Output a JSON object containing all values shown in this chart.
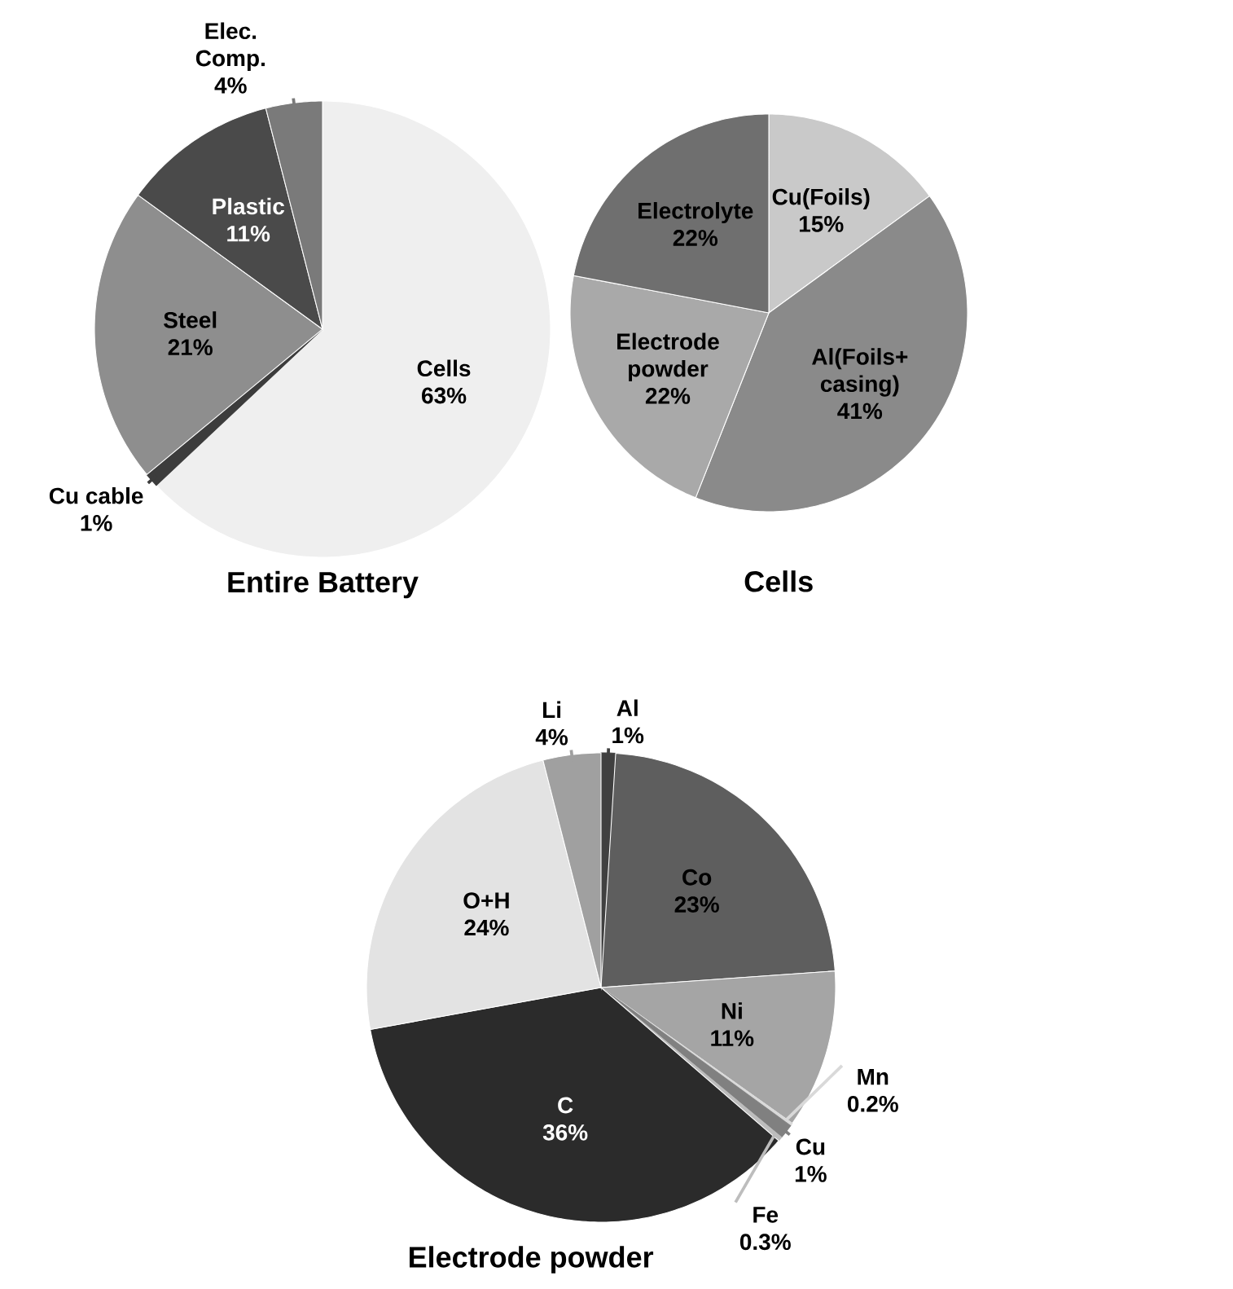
{
  "chart_data": [
    {
      "type": "pie",
      "title": "Entire Battery",
      "categories": [
        "Cells",
        "Cu cable",
        "Steel",
        "Plastic",
        "Elec. Comp."
      ],
      "values": [
        63,
        1,
        21,
        11,
        4
      ],
      "value_labels": [
        "63%",
        "1%",
        "21%",
        "11%",
        "4%"
      ],
      "colors": [
        "#efefef",
        "#3c3c3c",
        "#8e8e8e",
        "#4a4a4a",
        "#7a7a7a"
      ]
    },
    {
      "type": "pie",
      "title": "Cells",
      "categories": [
        "Cu(Foils)",
        "Al(Foils+ casing)",
        "Electrode powder",
        "Electrolyte"
      ],
      "values": [
        15,
        41,
        22,
        22
      ],
      "value_labels": [
        "15%",
        "41%",
        "22%",
        "22%"
      ],
      "colors": [
        "#c9c9c9",
        "#8a8a8a",
        "#a9a9a9",
        "#6f6f6f"
      ]
    },
    {
      "type": "pie",
      "title": "Electrode powder",
      "categories": [
        "Al",
        "Co",
        "Ni",
        "Mn",
        "Cu",
        "Fe",
        "C",
        "O+H",
        "Li"
      ],
      "values": [
        1,
        23,
        11,
        0.2,
        1,
        0.3,
        36,
        24,
        4
      ],
      "value_labels": [
        "1%",
        "23%",
        "11%",
        "0.2%",
        "1%",
        "0.3%",
        "36%",
        "24%",
        "4%"
      ],
      "colors": [
        "#404040",
        "#5e5e5e",
        "#a5a5a5",
        "#d9d9d9",
        "#808080",
        "#bdbdbd",
        "#2b2b2b",
        "#e3e3e3",
        "#a0a0a0"
      ]
    }
  ]
}
